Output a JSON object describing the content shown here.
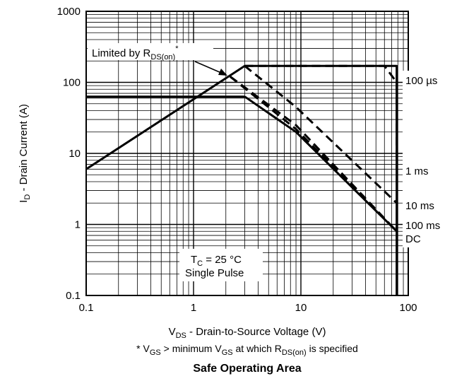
{
  "chart_data": {
    "type": "line",
    "title": "Safe Operating Area",
    "x_scale": "log",
    "y_scale": "log",
    "xlim": [
      0.1,
      100
    ],
    "ylim": [
      0.1,
      1000
    ],
    "grid": true,
    "x_ticks": [
      "0.1",
      "1",
      "10",
      "100"
    ],
    "y_ticks": [
      "0.1",
      "1",
      "10",
      "100",
      "1000"
    ],
    "xlabel": {
      "main": "V",
      "sub": "DS",
      "rest": " - Drain-to-Source Voltage (V)"
    },
    "ylabel": {
      "main": "I",
      "sub": "D",
      "rest": " - Drain Current (A)"
    },
    "footnote": {
      "p1": "* V",
      "s1": "GS",
      "p2": " > minimum V",
      "s2": "GS",
      "p3": " at which R",
      "s3": "DS(on)",
      "p4": " is specified"
    },
    "limit_annotation": {
      "main": "Limited by R",
      "sub": "DS(on)",
      "sup": "*"
    },
    "conditions": {
      "tc_main": "T",
      "tc_sub": "C",
      "tc_rest": " = 25 °C",
      "pulse": "Single Pulse"
    },
    "series": [
      {
        "name": "100 µs",
        "style": "dashed",
        "x": [
          3,
          8,
          60,
          78,
          78
        ],
        "y": [
          170,
          170,
          170,
          100,
          6
        ]
      },
      {
        "name": "1 ms",
        "style": "dashed",
        "x": [
          3,
          9,
          78
        ],
        "y": [
          170,
          45,
          2
        ]
      },
      {
        "name": "10 ms",
        "style": "dashed",
        "x": [
          2.2,
          9,
          78
        ],
        "y": [
          120,
          25,
          0.8
        ]
      },
      {
        "name": "100 ms",
        "style": "dashed",
        "x": [
          2.2,
          9,
          78
        ],
        "y": [
          120,
          22,
          0.8
        ]
      },
      {
        "name": "DC",
        "style": "solid",
        "x": [
          3,
          9,
          78
        ],
        "y": [
          63,
          20,
          0.8
        ]
      },
      {
        "name": "",
        "style": "solid",
        "x": [
          0.1,
          3,
          78,
          78
        ],
        "y": [
          6,
          170,
          170,
          0.1
        ]
      },
      {
        "name": "",
        "style": "solid",
        "x": [
          0.1,
          3
        ],
        "y": [
          63,
          63
        ]
      }
    ],
    "colors": {
      "line": "#000000",
      "grid": "#000000",
      "background": "#ffffff"
    }
  }
}
